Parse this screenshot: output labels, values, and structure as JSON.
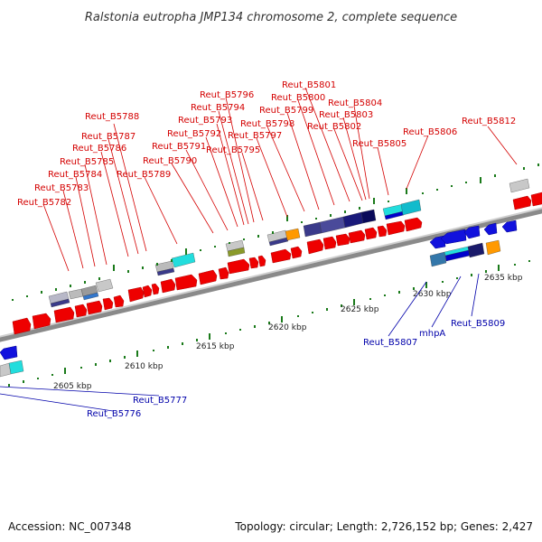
{
  "title": "Ralstonia eutropha JMP134 chromosome 2, complete sequence",
  "footer": {
    "accession": "Accession: NC_007348",
    "summary": "Topology: circular; Length: 2,726,152 bp; Genes: 2,427"
  },
  "colors": {
    "forward_gene": "#ee0000",
    "reverse_gene": "#1111dd",
    "backbone": "#888888",
    "forward_label": "#d40000",
    "reverse_label": "#0000aa",
    "tick": "#1a7a1a"
  },
  "ticks": [
    "2605 kbp",
    "2610 kbp",
    "2615 kbp",
    "2620 kbp",
    "2625 kbp",
    "2630 kbp",
    "2635 kbp"
  ],
  "forward_labels": [
    "Reut_B5782",
    "Reut_B5783",
    "Reut_B5784",
    "Reut_B5785",
    "Reut_B5786",
    "Reut_B5787",
    "Reut_B5788",
    "Reut_B5789",
    "Reut_B5790",
    "Reut_B5791",
    "Reut_B5792",
    "Reut_B5793",
    "Reut_B5794",
    "Reut_B5795",
    "Reut_B5796",
    "Reut_B5797",
    "Reut_B5798",
    "Reut_B5799",
    "Reut_B5800",
    "Reut_B5801",
    "Reut_B5802",
    "Reut_B5803",
    "Reut_B5804",
    "Reut_B5805",
    "Reut_B5806",
    "Reut_B5812"
  ],
  "reverse_labels": [
    "Reut_B5777",
    "Reut_B5776",
    "Reut_B5807",
    "mhpA",
    "Reut_B5809"
  ]
}
